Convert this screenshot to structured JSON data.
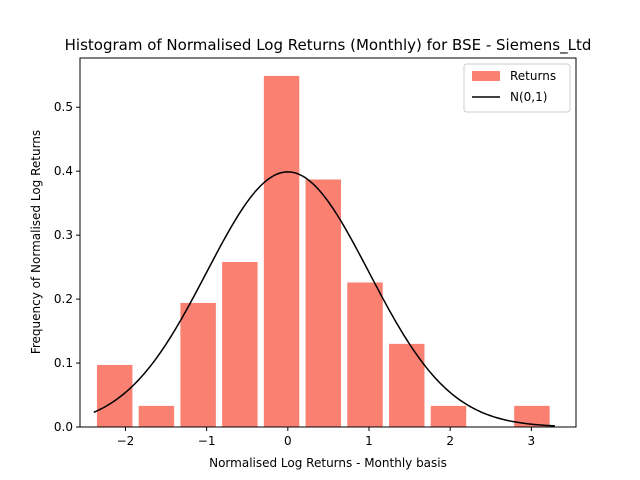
{
  "chart_data": {
    "type": "bar",
    "title": "Histogram of Normalised Log Returns (Monthly) for BSE - Siemens_Ltd",
    "xlabel": "Normalised Log Returns - Monthly basis",
    "ylabel": "Frequency of Normalised Log Returns",
    "xlim": [
      -2.56,
      3.55
    ],
    "ylim": [
      0,
      0.577
    ],
    "xticks": [
      -2,
      -1,
      0,
      1,
      2,
      3
    ],
    "xtick_labels": [
      "−2",
      "−1",
      "0",
      "1",
      "2",
      "3"
    ],
    "yticks": [
      0.0,
      0.1,
      0.2,
      0.3,
      0.4,
      0.5
    ],
    "ytick_labels": [
      "0.0",
      "0.1",
      "0.2",
      "0.3",
      "0.4",
      "0.5"
    ],
    "legend_position": "top-right",
    "grid": false,
    "series": [
      {
        "name": "Returns",
        "kind": "bar",
        "color": "#fa8072",
        "bin_edges": [
          -2.39,
          -1.876,
          -1.362,
          -0.848,
          -0.334,
          0.18,
          0.694,
          1.208,
          1.722,
          2.236,
          2.75,
          3.264
        ],
        "values": [
          0.097,
          0.033,
          0.194,
          0.258,
          0.549,
          0.387,
          0.226,
          0.13,
          0.033,
          0.0,
          0.033
        ]
      },
      {
        "name": "N(0,1)",
        "kind": "line",
        "color": "#000000",
        "x_range": [
          -2.39,
          3.29
        ]
      }
    ]
  }
}
